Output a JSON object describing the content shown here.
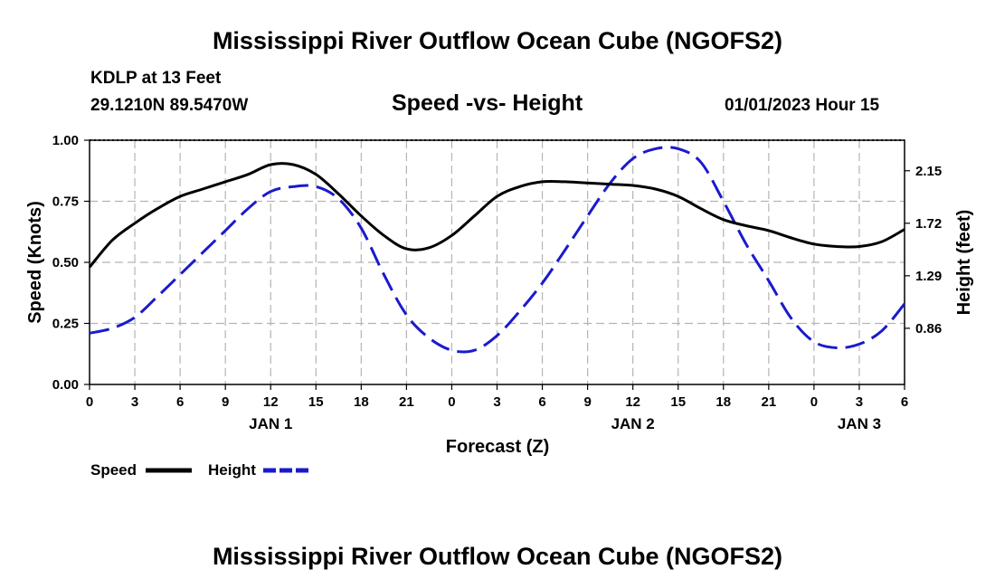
{
  "page": {
    "title_top": "Mississippi River Outflow Ocean Cube (NGOFS2)",
    "title_bottom": "Mississippi River Outflow Ocean Cube (NGOFS2)",
    "station": "KDLP at 13 Feet",
    "coords": "29.1210N  89.5470W",
    "timestamp": "01/01/2023 Hour 15"
  },
  "chart_data": {
    "type": "line",
    "title": "Speed -vs- Height",
    "xlabel": "Forecast (Z)",
    "ylabel_left": "Speed (Knots)",
    "ylabel_right": "Height (feet)",
    "x_range_hours": [
      0,
      54
    ],
    "x_ticks": [
      {
        "h": 0,
        "label": "0"
      },
      {
        "h": 3,
        "label": "3"
      },
      {
        "h": 6,
        "label": "6"
      },
      {
        "h": 9,
        "label": "9"
      },
      {
        "h": 12,
        "label": "12"
      },
      {
        "h": 15,
        "label": "15"
      },
      {
        "h": 18,
        "label": "18"
      },
      {
        "h": 21,
        "label": "21"
      },
      {
        "h": 24,
        "label": "0"
      },
      {
        "h": 27,
        "label": "3"
      },
      {
        "h": 30,
        "label": "6"
      },
      {
        "h": 33,
        "label": "9"
      },
      {
        "h": 36,
        "label": "12"
      },
      {
        "h": 39,
        "label": "15"
      },
      {
        "h": 42,
        "label": "18"
      },
      {
        "h": 45,
        "label": "21"
      },
      {
        "h": 48,
        "label": "0"
      },
      {
        "h": 51,
        "label": "3"
      },
      {
        "h": 54,
        "label": "6"
      }
    ],
    "day_labels": [
      {
        "h": 12,
        "label": "JAN 1"
      },
      {
        "h": 36,
        "label": "JAN 2"
      },
      {
        "h": 51,
        "label": "JAN 3"
      }
    ],
    "y_left": {
      "range": [
        0,
        1
      ],
      "ticks": [
        0,
        0.25,
        0.5,
        0.75,
        1.0
      ],
      "tick_labels": [
        "0.00",
        "0.25",
        "0.50",
        "0.75",
        "1.00"
      ]
    },
    "y_right": {
      "range": [
        0.4,
        2.4
      ],
      "ticks": [
        0.86,
        1.29,
        1.72,
        2.15
      ],
      "tick_labels": [
        "0.86",
        "1.29",
        "1.72",
        "2.15"
      ]
    },
    "grid": true,
    "legend": [
      {
        "name": "Speed",
        "color": "#000000",
        "style": "solid"
      },
      {
        "name": "Height",
        "color": "#1a1acd",
        "style": "dashed"
      }
    ],
    "series": [
      {
        "name": "Speed",
        "axis": "left",
        "color": "#000000",
        "style": "solid",
        "x": [
          0,
          1.5,
          3,
          4.5,
          6,
          7.5,
          9,
          10.5,
          12,
          13.5,
          15,
          16.5,
          18,
          19.5,
          21,
          22.5,
          24,
          25.5,
          27,
          28.5,
          30,
          31.5,
          33,
          34.5,
          36,
          37.5,
          39,
          40.5,
          42,
          43.5,
          45,
          46.5,
          48,
          49.5,
          51,
          52.5,
          54
        ],
        "values": [
          0.48,
          0.59,
          0.66,
          0.72,
          0.77,
          0.8,
          0.83,
          0.86,
          0.9,
          0.9,
          0.86,
          0.78,
          0.69,
          0.61,
          0.555,
          0.56,
          0.61,
          0.69,
          0.77,
          0.81,
          0.83,
          0.83,
          0.825,
          0.82,
          0.815,
          0.8,
          0.77,
          0.72,
          0.675,
          0.65,
          0.63,
          0.6,
          0.575,
          0.565,
          0.565,
          0.585,
          0.635
        ]
      },
      {
        "name": "Height",
        "axis": "right",
        "color": "#1a1acd",
        "style": "dashed",
        "x": [
          0,
          1.5,
          3,
          4.5,
          6,
          7.5,
          9,
          10.5,
          12,
          13.5,
          15,
          16.5,
          18,
          19.5,
          21,
          22.5,
          24,
          25.5,
          27,
          28.5,
          30,
          31.5,
          33,
          34.5,
          36,
          37.5,
          39,
          40.5,
          42,
          43.5,
          45,
          46.5,
          48,
          49.5,
          51,
          52.5,
          54
        ],
        "values": [
          0.82,
          0.86,
          0.95,
          1.12,
          1.3,
          1.48,
          1.66,
          1.84,
          1.98,
          2.02,
          2.02,
          1.92,
          1.68,
          1.3,
          0.97,
          0.78,
          0.68,
          0.68,
          0.8,
          1.0,
          1.23,
          1.5,
          1.78,
          2.05,
          2.25,
          2.33,
          2.33,
          2.22,
          1.9,
          1.55,
          1.25,
          0.94,
          0.75,
          0.7,
          0.73,
          0.84,
          1.06
        ]
      }
    ]
  }
}
